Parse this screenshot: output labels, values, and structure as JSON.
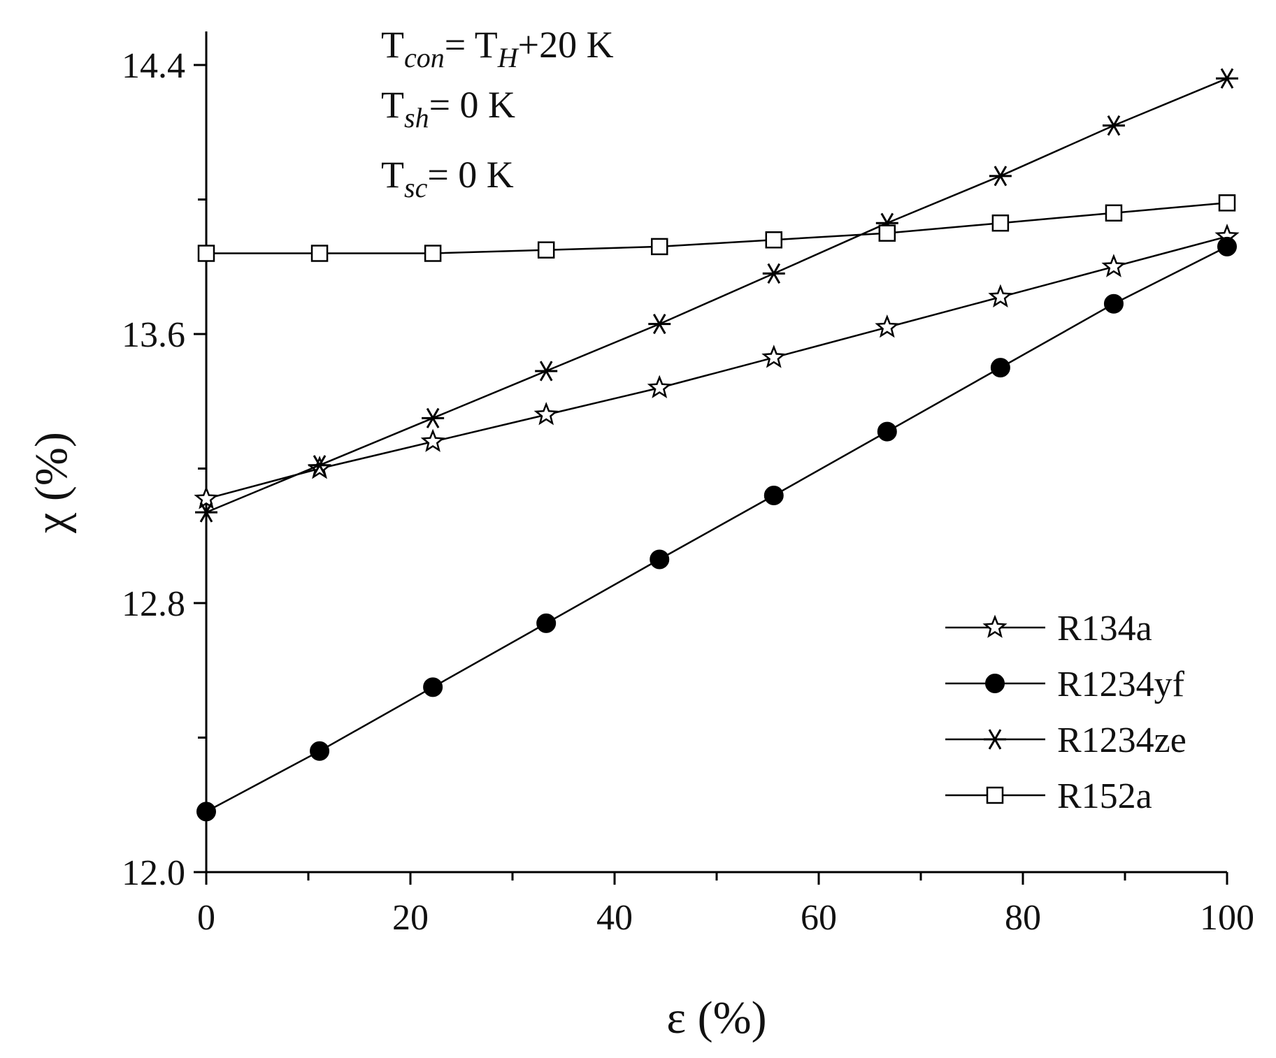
{
  "chart_data": {
    "type": "line",
    "xlabel": "ε (%)",
    "ylabel": "χ (%)",
    "xlim": [
      0,
      100
    ],
    "ylim": [
      12.0,
      14.5
    ],
    "x_ticks": [
      "0",
      "20",
      "40",
      "60",
      "80",
      "100"
    ],
    "y_ticks": [
      "12.0",
      "12.8",
      "13.6",
      "14.4"
    ],
    "x_minor_step": 10,
    "y_minor_step": 0.4,
    "legend_position": "lower-right",
    "annotations": [
      {
        "main": "T",
        "sub": "con",
        "rest": "= T",
        "sub2": "H",
        "rest2": "+20 K"
      },
      {
        "main": "T",
        "sub": "sh",
        "rest": "= 0 K"
      },
      {
        "main": "T",
        "sub": "sc",
        "rest": "= 0 K"
      }
    ],
    "x": [
      0,
      11.1,
      22.2,
      33.3,
      44.4,
      55.6,
      66.7,
      77.8,
      88.9,
      100
    ],
    "series": [
      {
        "name": "R134a",
        "marker": "star-open",
        "values": [
          13.11,
          13.2,
          13.28,
          13.36,
          13.44,
          13.53,
          13.62,
          13.71,
          13.8,
          13.89
        ]
      },
      {
        "name": "R1234yf",
        "marker": "circle-filled",
        "values": [
          12.18,
          12.36,
          12.55,
          12.74,
          12.93,
          13.12,
          13.31,
          13.5,
          13.69,
          13.86
        ]
      },
      {
        "name": "R1234ze",
        "marker": "asterisk",
        "values": [
          13.07,
          13.21,
          13.35,
          13.49,
          13.63,
          13.78,
          13.93,
          14.07,
          14.22,
          14.36
        ]
      },
      {
        "name": "R152a",
        "marker": "square-open",
        "values": [
          13.84,
          13.84,
          13.84,
          13.85,
          13.86,
          13.88,
          13.9,
          13.93,
          13.96,
          13.99
        ]
      }
    ]
  }
}
